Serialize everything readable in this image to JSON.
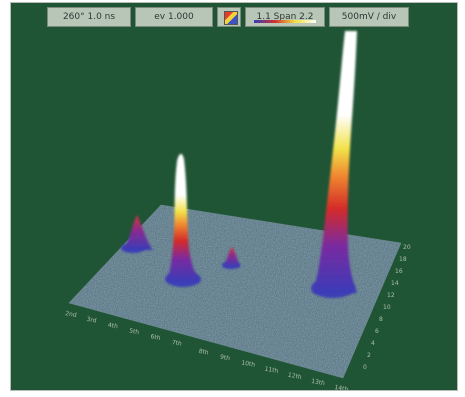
{
  "toolbar": {
    "cells": [
      "260° 1.0 ns",
      "ev 1.000",
      "",
      "1.1 Span 2.2",
      "500mV / div"
    ]
  },
  "colors": {
    "background": "#1f5535",
    "surface": "#4e6e7a",
    "peak_low": "#3a3cb8",
    "peak_mid": "#d42a2a",
    "peak_high": "#f2e24a",
    "peak_top": "#ffffff"
  },
  "icons": [
    "color-palette-icon"
  ]
}
